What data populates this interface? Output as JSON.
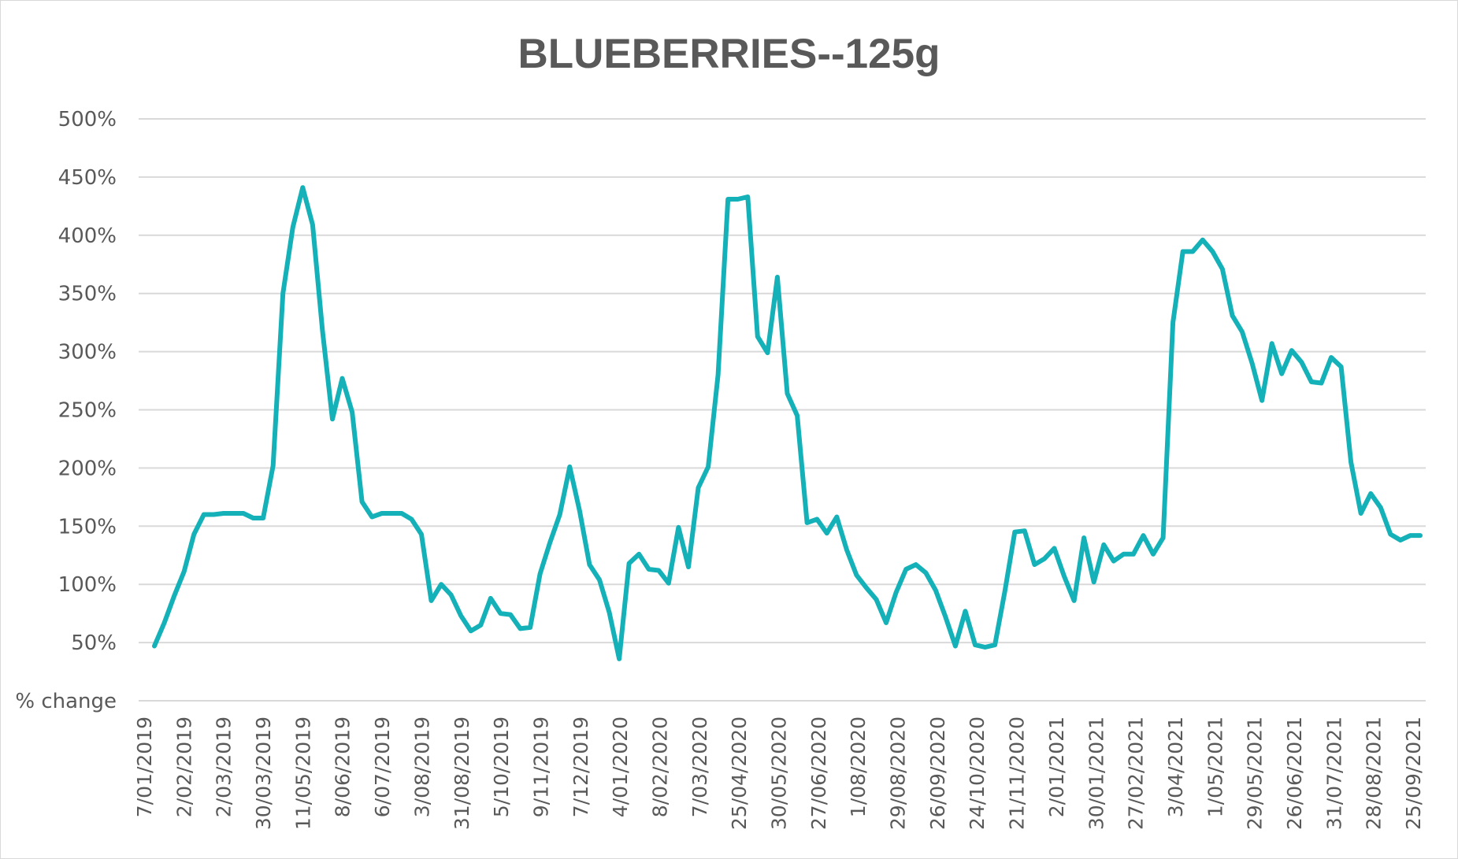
{
  "chart_data": {
    "type": "line",
    "title": "BLUEBERRIES--125g",
    "y_bottom_label": "% change",
    "y_ticks": [
      "50%",
      "100%",
      "150%",
      "200%",
      "250%",
      "300%",
      "350%",
      "400%",
      "450%",
      "500%"
    ],
    "ylim": [
      0,
      500
    ],
    "grid": true,
    "x_tick_labels": [
      "7/01/2019",
      "2/02/2019",
      "2/03/2019",
      "30/03/2019",
      "11/05/2019",
      "8/06/2019",
      "6/07/2019",
      "3/08/2019",
      "31/08/2019",
      "5/10/2019",
      "9/11/2019",
      "7/12/2019",
      "4/01/2020",
      "8/02/2020",
      "7/03/2020",
      "25/04/2020",
      "30/05/2020",
      "27/06/2020",
      "1/08/2020",
      "29/08/2020",
      "26/09/2020",
      "24/10/2020",
      "21/11/2020",
      "2/01/2021",
      "30/01/2021",
      "27/02/2021",
      "3/04/2021",
      "1/05/2021",
      "29/05/2021",
      "26/06/2021",
      "31/07/2021",
      "28/08/2021",
      "25/09/2021"
    ],
    "series": [
      {
        "color": "#14b1b8",
        "values": [
          47,
          67,
          90,
          111,
          143,
          160,
          160,
          161,
          161,
          161,
          157,
          157,
          202,
          350,
          407,
          441,
          409,
          318,
          242,
          277,
          248,
          171,
          158,
          161,
          161,
          161,
          156,
          143,
          86,
          100,
          91,
          73,
          60,
          65,
          88,
          75,
          74,
          62,
          63,
          109,
          136,
          160,
          201,
          163,
          117,
          104,
          76,
          36,
          118,
          126,
          113,
          112,
          101,
          149,
          115,
          183,
          201,
          280,
          431,
          431,
          433,
          313,
          299,
          364,
          264,
          245,
          153,
          156,
          144,
          158,
          130,
          108,
          97,
          87,
          67,
          93,
          113,
          117,
          110,
          95,
          72,
          47,
          77,
          48,
          46,
          48,
          94,
          145,
          146,
          117,
          122,
          131,
          107,
          86,
          140,
          102,
          134,
          120,
          126,
          126,
          142,
          126,
          140,
          325,
          386,
          386,
          396,
          386,
          371,
          331,
          317,
          290,
          258,
          307,
          281,
          301,
          291,
          274,
          273,
          295,
          287,
          205,
          161,
          178,
          166,
          143,
          138,
          142,
          142
        ]
      }
    ]
  }
}
